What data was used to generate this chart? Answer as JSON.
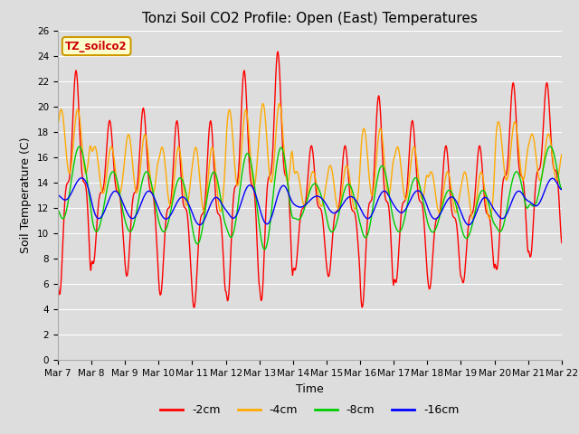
{
  "title": "Tonzi Soil CO2 Profile: Open (East) Temperatures",
  "xlabel": "Time",
  "ylabel": "Soil Temperature (C)",
  "ylim": [
    0,
    26
  ],
  "yticks": [
    0,
    2,
    4,
    6,
    8,
    10,
    12,
    14,
    16,
    18,
    20,
    22,
    24,
    26
  ],
  "bg_color": "#dddddd",
  "plot_bg_color": "#dddddd",
  "series_colors": [
    "#ff0000",
    "#ffaa00",
    "#00cc00",
    "#0000ff"
  ],
  "series_labels": [
    "-2cm",
    "-4cm",
    "-8cm",
    "-16cm"
  ],
  "xticklabels": [
    "Mar 7",
    "Mar 8",
    "Mar 9",
    "Mar 10",
    "Mar 11",
    "Mar 12",
    "Mar 13",
    "Mar 14",
    "Mar 15",
    "Mar 16",
    "Mar 17",
    "Mar 18",
    "Mar 19",
    "Mar 20",
    "Mar 21",
    "Mar 22"
  ],
  "title_fontsize": 11,
  "axis_label_fontsize": 9,
  "tick_fontsize": 7.5
}
